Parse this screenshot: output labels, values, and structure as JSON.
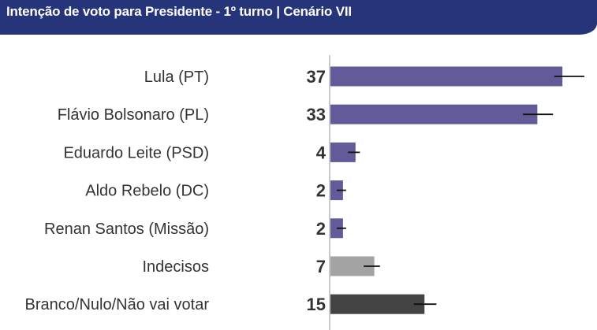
{
  "chart_data": {
    "type": "bar",
    "orientation": "horizontal",
    "title": "Intenção de voto para Presidente - 1º turno | Cenário VII",
    "categories": [
      "Lula (PT)",
      "Flávio Bolsonaro (PL)",
      "Eduardo Leite (PSD)",
      "Aldo Rebelo (DC)",
      "Renan Santos (Missão)",
      "Indecisos",
      "Branco/Nulo/Não vai votar"
    ],
    "values": [
      37,
      33,
      4,
      2,
      2,
      7,
      15
    ],
    "error_low": [
      35.7,
      30.7,
      2.8,
      1.0,
      1.0,
      5.3,
      13.3
    ],
    "error_high": [
      40.5,
      35.5,
      4.7,
      2.5,
      2.5,
      7.9,
      16.9
    ],
    "colors": [
      "#615c99",
      "#615c99",
      "#615c99",
      "#615c99",
      "#615c99",
      "#a3a3a3",
      "#444444"
    ],
    "xlim": [
      0,
      42
    ],
    "grid": false
  }
}
